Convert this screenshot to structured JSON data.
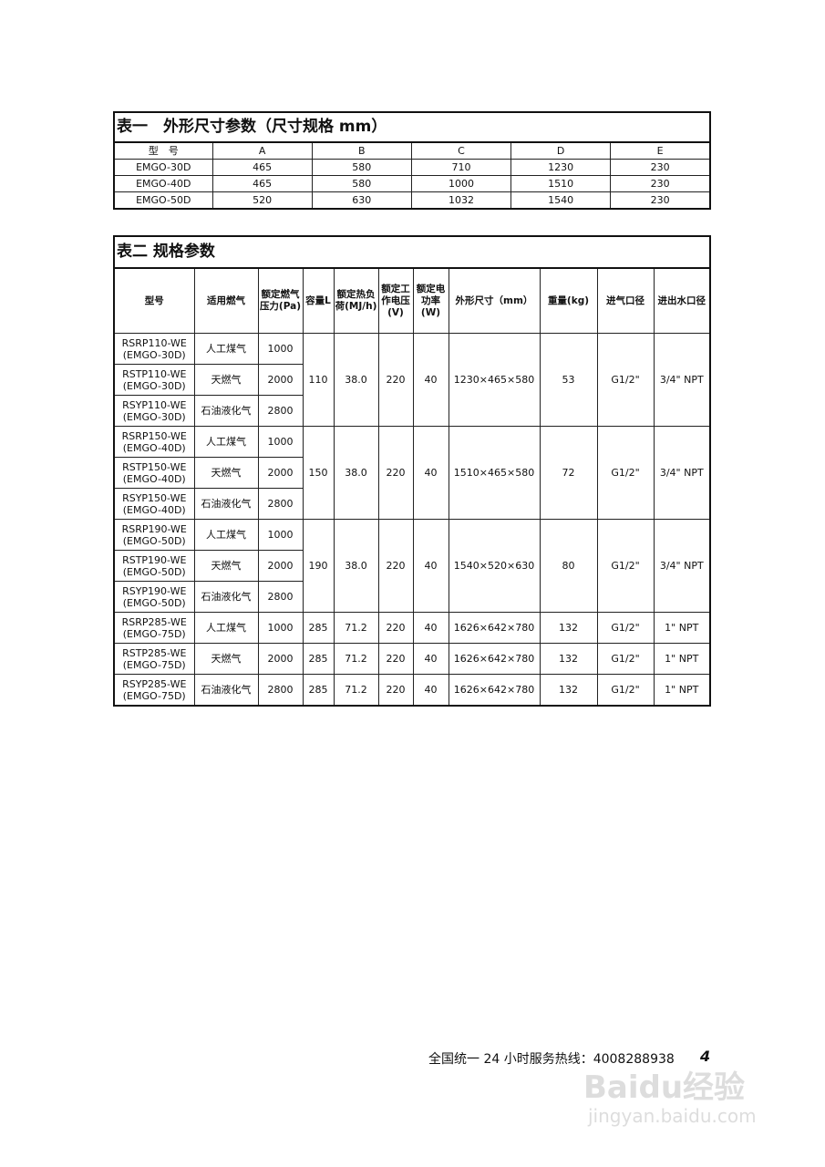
{
  "table1": {
    "title": "表一　外形尺寸参数（尺寸规格 mm）",
    "headers": [
      "型　号",
      "A",
      "B",
      "C",
      "D",
      "E"
    ],
    "rows": [
      [
        "EMGO-30D",
        "465",
        "580",
        "710",
        "1230",
        "230"
      ],
      [
        "EMGO-40D",
        "465",
        "580",
        "1000",
        "1510",
        "230"
      ],
      [
        "EMGO-50D",
        "520",
        "630",
        "1032",
        "1540",
        "230"
      ]
    ]
  },
  "table2": {
    "title": "表二 规格参数",
    "headers": [
      "型号",
      "适用燃气",
      "额定燃气压力(Pa)",
      "容量L",
      "额定热负荷(MJ/h)",
      "额定工作电压(V)",
      "额定电功率(W)",
      "外形尺寸（mm）",
      "重量(kg)",
      "进气口径",
      "进出水口径"
    ],
    "groups": [
      {
        "models": [
          [
            "RSRP110-WE",
            "(EMGO-30D)",
            "人工煤气",
            "1000"
          ],
          [
            "RSTP110-WE",
            "(EMGO-30D)",
            "天燃气",
            "2000"
          ],
          [
            "RSYP110-WE",
            "(EMGO-30D)",
            "石油液化气",
            "2800"
          ]
        ],
        "capacity": "110",
        "heat": "38.0",
        "voltage": "220",
        "power": "40",
        "size": "1230×465×580",
        "weight": "53",
        "gas_inlet": "G1/2\"",
        "water": "3/4\" NPT"
      },
      {
        "models": [
          [
            "RSRP150-WE",
            "(EMGO-40D)",
            "人工煤气",
            "1000"
          ],
          [
            "RSTP150-WE",
            "(EMGO-40D)",
            "天燃气",
            "2000"
          ],
          [
            "RSYP150-WE",
            "(EMGO-40D)",
            "石油液化气",
            "2800"
          ]
        ],
        "capacity": "150",
        "heat": "38.0",
        "voltage": "220",
        "power": "40",
        "size": "1510×465×580",
        "weight": "72",
        "gas_inlet": "G1/2\"",
        "water": "3/4\" NPT"
      },
      {
        "models": [
          [
            "RSRP190-WE",
            "(EMGO-50D)",
            "人工煤气",
            "1000"
          ],
          [
            "RSTP190-WE",
            "(EMGO-50D)",
            "天燃气",
            "2000"
          ],
          [
            "RSYP190-WE",
            "(EMGO-50D)",
            "石油液化气",
            "2800"
          ]
        ],
        "capacity": "190",
        "heat": "38.0",
        "voltage": "220",
        "power": "40",
        "size": "1540×520×630",
        "weight": "80",
        "gas_inlet": "G1/2\"",
        "water": "3/4\" NPT"
      }
    ],
    "single_rows": [
      [
        "RSRP285-WE",
        "(EMGO-75D)",
        "人工煤气",
        "1000",
        "285",
        "71.2",
        "220",
        "40",
        "1626×642×780",
        "132",
        "G1/2\"",
        "1\" NPT"
      ],
      [
        "RSTP285-WE",
        "(EMGO-75D)",
        "天燃气",
        "2000",
        "285",
        "71.2",
        "220",
        "40",
        "1626×642×780",
        "132",
        "G1/2\"",
        "1\" NPT"
      ],
      [
        "RSYP285-WE",
        "(EMGO-75D)",
        "石油液化气",
        "2800",
        "285",
        "71.2",
        "220",
        "40",
        "1626×642×780",
        "132",
        "G1/2\"",
        "1\" NPT"
      ]
    ]
  },
  "footer": {
    "hotline": "全国统一 24 小时服务热线：4008288938",
    "page_number": "4"
  },
  "watermark": {
    "logo": "Baidu经验",
    "url": "jingyan.baidu.com"
  }
}
